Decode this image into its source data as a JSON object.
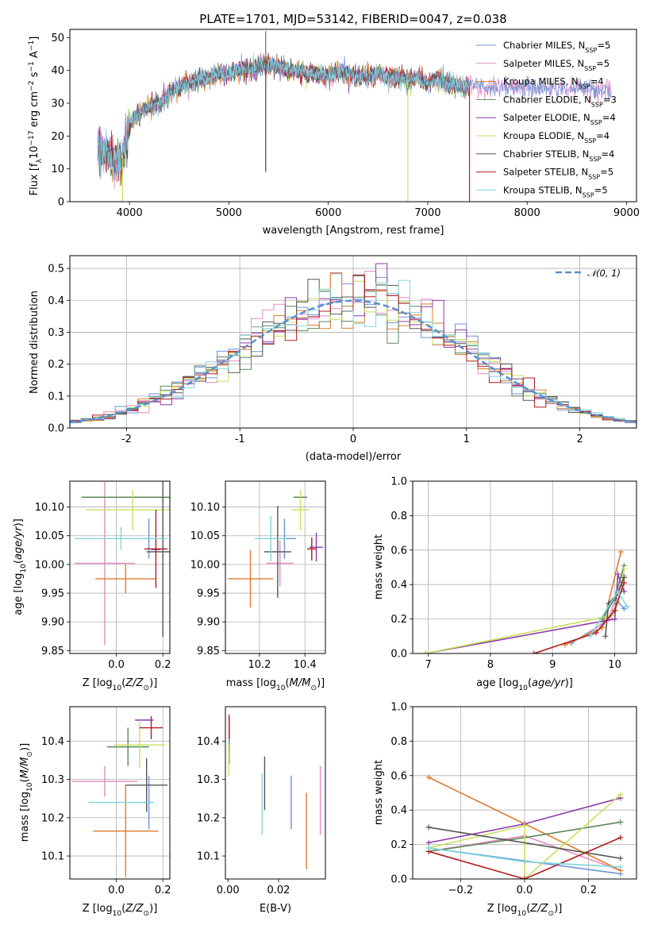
{
  "figure_title": "PLATE=1701, MJD=53142, FIBERID=0047, z=0.038",
  "colors": {
    "Chabrier MILES": "#6b93d6",
    "Salpeter MILES": "#e78ac3",
    "Kroupa MILES": "#e07b2a",
    "Chabrier ELODIE": "#5b8a5b",
    "Salpeter ELODIE": "#8b3cab",
    "Kroupa ELODIE": "#c8e05a",
    "Chabrier STELIB": "#555555",
    "Salpeter STELIB": "#b01c20",
    "Kroupa STELIB": "#7fd6dd"
  },
  "spectrum_legend": [
    {
      "model": "Chabrier MILES",
      "label": "Chabrier MILES, N",
      "sub": "SSP",
      "suffix": "=5"
    },
    {
      "model": "Salpeter MILES",
      "label": "Salpeter MILES, N",
      "sub": "SSP",
      "suffix": "=5"
    },
    {
      "model": "Kroupa MILES",
      "label": "Kroupa MILES, N",
      "sub": "SSP",
      "suffix": "=4"
    },
    {
      "model": "Chabrier ELODIE",
      "label": "Chabrier ELODIE, N",
      "sub": "SSP",
      "suffix": "=3"
    },
    {
      "model": "Salpeter ELODIE",
      "label": "Salpeter ELODIE, N",
      "sub": "SSP",
      "suffix": "=4"
    },
    {
      "model": "Kroupa ELODIE",
      "label": "Kroupa ELODIE, N",
      "sub": "SSP",
      "suffix": "=4"
    },
    {
      "model": "Chabrier STELIB",
      "label": "Chabrier STELIB, N",
      "sub": "SSP",
      "suffix": "=4"
    },
    {
      "model": "Salpeter STELIB",
      "label": "Salpeter STELIB, N",
      "sub": "SSP",
      "suffix": "=5"
    },
    {
      "model": "Kroupa STELIB",
      "label": "Kroupa STELIB, N",
      "sub": "SSP",
      "suffix": "=5"
    }
  ],
  "chart_data": [
    {
      "id": "spectrum",
      "type": "line",
      "xlabel": "wavelength [Angstrom, rest frame]",
      "ylabel": "Flux [f_λ 10^-17 erg cm^-2 s^-1 A^-1]",
      "xlim": [
        3400,
        9100
      ],
      "ylim": [
        0,
        52.5
      ],
      "xticks": [
        4000,
        5000,
        6000,
        7000,
        8000,
        9000
      ],
      "yticks": [
        0,
        10,
        20,
        30,
        40,
        50
      ],
      "grid": false,
      "legend_position": "upper-right",
      "continuum": [
        [
          3680,
          16
        ],
        [
          3760,
          15
        ],
        [
          3850,
          12
        ],
        [
          3920,
          13
        ],
        [
          3960,
          18
        ],
        [
          4000,
          24
        ],
        [
          4100,
          27
        ],
        [
          4200,
          29
        ],
        [
          4300,
          30
        ],
        [
          4400,
          33
        ],
        [
          4500,
          35
        ],
        [
          4600,
          36
        ],
        [
          4700,
          37
        ],
        [
          4800,
          38
        ],
        [
          4900,
          39
        ],
        [
          5000,
          39
        ],
        [
          5100,
          40
        ],
        [
          5200,
          40
        ],
        [
          5300,
          41
        ],
        [
          5400,
          42
        ],
        [
          5500,
          41
        ],
        [
          5600,
          40
        ],
        [
          5700,
          40
        ],
        [
          5800,
          39
        ],
        [
          5900,
          39
        ],
        [
          6000,
          38
        ],
        [
          6100,
          40
        ],
        [
          6200,
          39
        ],
        [
          6300,
          38
        ],
        [
          6400,
          38
        ],
        [
          6500,
          39
        ],
        [
          6600,
          38
        ],
        [
          6700,
          38
        ],
        [
          6800,
          37
        ],
        [
          6900,
          38
        ],
        [
          7000,
          36
        ],
        [
          7100,
          37
        ],
        [
          7200,
          36
        ],
        [
          7300,
          35
        ],
        [
          7400,
          35
        ]
      ],
      "extensions": [
        {
          "model": "Chabrier MILES",
          "x_end": 8850
        },
        {
          "model": "Salpeter MILES",
          "x_end": 8850
        },
        {
          "model": "Kroupa MILES",
          "x_end": 7420
        },
        {
          "model": "Salpeter STELIB",
          "x_end": 7420
        }
      ],
      "dips": [
        {
          "model": "Kroupa ELODIE",
          "x": 3930,
          "y": 0
        },
        {
          "model": "Kroupa ELODIE",
          "x": 6800,
          "y": 0
        },
        {
          "model": "Salpeter STELIB",
          "x": 7420,
          "y": 0
        },
        {
          "model": "Chabrier STELIB",
          "x": 5370,
          "y": 9
        }
      ]
    },
    {
      "id": "residuals",
      "type": "histogram",
      "xlabel": "(data-model)/error",
      "ylabel": "Normed distribution",
      "xlim": [
        -2.5,
        2.5
      ],
      "ylim": [
        0,
        0.54
      ],
      "xticks": [
        -2,
        -1,
        0,
        1,
        2
      ],
      "yticks": [
        0.0,
        0.1,
        0.2,
        0.3,
        0.4,
        0.5
      ],
      "grid": true,
      "bins": 50,
      "reference": {
        "name": "𝒩(0, 1)",
        "color": "#5b8fd0",
        "style": "dashed",
        "mean": 0,
        "sigma": 1
      },
      "legend_position": "upper-right"
    },
    {
      "id": "age_vs_Z",
      "type": "errorbar",
      "xlabel": "Z [log10(Z/Z⊙)]",
      "ylabel": "age [log10(age/yr)]",
      "xlim": [
        -0.2,
        0.23
      ],
      "ylim": [
        9.845,
        10.145
      ],
      "xticks": [
        0.0,
        0.2
      ],
      "yticks": [
        9.85,
        9.9,
        9.95,
        10.0,
        10.05,
        10.1
      ],
      "grid": true,
      "points": [
        {
          "model": "Chabrier MILES",
          "x": 0.14,
          "xerr": 0.02,
          "y": 10.045,
          "yerr": 0.035
        },
        {
          "model": "Salpeter MILES",
          "x": -0.05,
          "xerr": 0.13,
          "y": 10.002,
          "yerr": 0.142
        },
        {
          "model": "Kroupa MILES",
          "x": 0.04,
          "xerr": 0.13,
          "y": 9.975,
          "yerr": 0.025
        },
        {
          "model": "Chabrier ELODIE",
          "x": 0.07,
          "xerr": 0.22,
          "y": 10.117,
          "yerr": 0.0
        },
        {
          "model": "Salpeter ELODIE",
          "x": 0.17,
          "xerr": 0.02,
          "y": 10.026,
          "yerr": 0.0
        },
        {
          "model": "Kroupa ELODIE",
          "x": 0.07,
          "xerr": 0.2,
          "y": 10.095,
          "yerr": 0.035
        },
        {
          "model": "Chabrier STELIB",
          "x": 0.2,
          "xerr": 0.07,
          "y": 10.022,
          "yerr": 0.148
        },
        {
          "model": "Salpeter STELIB",
          "x": 0.17,
          "xerr": 0.05,
          "y": 10.027,
          "yerr": 0.068
        },
        {
          "model": "Kroupa STELIB",
          "x": 0.02,
          "xerr": 0.2,
          "y": 10.045,
          "yerr": 0.02
        }
      ]
    },
    {
      "id": "age_vs_mass",
      "type": "errorbar",
      "xlabel": "mass [log10(M/M⊙)]",
      "ylabel": "",
      "xlim": [
        10.05,
        10.49
      ],
      "ylim": [
        9.845,
        10.145
      ],
      "xticks": [
        10.2,
        10.4
      ],
      "yticks": [
        9.85,
        9.9,
        9.95,
        10.0,
        10.05,
        10.1
      ],
      "grid": true,
      "points": [
        {
          "model": "Chabrier MILES",
          "x": 10.31,
          "xerr": 0.05,
          "y": 10.045,
          "yerr": 0.035
        },
        {
          "model": "Salpeter MILES",
          "x": 10.29,
          "xerr": 0.06,
          "y": 10.002,
          "yerr": 0.04
        },
        {
          "model": "Kroupa MILES",
          "x": 10.16,
          "xerr": 0.1,
          "y": 9.975,
          "yerr": 0.05
        },
        {
          "model": "Chabrier ELODIE",
          "x": 10.38,
          "xerr": 0.03,
          "y": 10.117,
          "yerr": 0.0
        },
        {
          "model": "Salpeter ELODIE",
          "x": 10.45,
          "xerr": 0.03,
          "y": 10.03,
          "yerr": 0.025
        },
        {
          "model": "Kroupa ELODIE",
          "x": 10.38,
          "xerr": 0.04,
          "y": 10.095,
          "yerr": 0.035
        },
        {
          "model": "Chabrier STELIB",
          "x": 10.28,
          "xerr": 0.06,
          "y": 10.022,
          "yerr": 0.08
        },
        {
          "model": "Salpeter STELIB",
          "x": 10.43,
          "xerr": 0.02,
          "y": 10.027,
          "yerr": 0.02
        },
        {
          "model": "Kroupa STELIB",
          "x": 10.25,
          "xerr": 0.07,
          "y": 10.045,
          "yerr": 0.04
        }
      ]
    },
    {
      "id": "mass_weight_vs_age",
      "type": "line",
      "xlabel": "age  [log10(age/yr)]",
      "ylabel": "mass weight",
      "xlim": [
        6.75,
        10.35
      ],
      "ylim": [
        0.0,
        1.0
      ],
      "xticks": [
        7,
        8,
        9,
        10
      ],
      "yticks": [
        0.0,
        0.2,
        0.4,
        0.6,
        0.8,
        1.0
      ],
      "grid": true,
      "series": [
        {
          "model": "Chabrier MILES",
          "points": [
            [
              9.3,
              0.06
            ],
            [
              9.8,
              0.17
            ],
            [
              9.95,
              0.22
            ],
            [
              10.05,
              0.3
            ],
            [
              10.15,
              0.26
            ]
          ]
        },
        {
          "model": "Salpeter MILES",
          "points": [
            [
              9.6,
              0.12
            ],
            [
              9.9,
              0.2
            ],
            [
              10.05,
              0.36
            ],
            [
              10.15,
              0.45
            ]
          ]
        },
        {
          "model": "Kroupa MILES",
          "points": [
            [
              9.2,
              0.05
            ],
            [
              9.8,
              0.15
            ],
            [
              10.1,
              0.59
            ]
          ]
        },
        {
          "model": "Chabrier ELODIE",
          "points": [
            [
              9.8,
              0.2
            ],
            [
              10.0,
              0.32
            ],
            [
              10.15,
              0.51
            ]
          ]
        },
        {
          "model": "Salpeter ELODIE",
          "points": [
            [
              6.95,
              0.0
            ],
            [
              10.0,
              0.2
            ],
            [
              10.05,
              0.46
            ],
            [
              10.15,
              0.36
            ]
          ]
        },
        {
          "model": "Kroupa ELODIE",
          "points": [
            [
              6.95,
              0.0
            ],
            [
              9.95,
              0.22
            ],
            [
              10.05,
              0.3
            ],
            [
              10.15,
              0.49
            ]
          ]
        },
        {
          "model": "Chabrier STELIB",
          "points": [
            [
              9.85,
              0.1
            ],
            [
              9.9,
              0.29
            ],
            [
              10.05,
              0.35
            ],
            [
              10.15,
              0.44
            ]
          ]
        },
        {
          "model": "Salpeter STELIB",
          "points": [
            [
              8.7,
              0.0
            ],
            [
              9.7,
              0.12
            ],
            [
              10.0,
              0.25
            ],
            [
              10.15,
              0.41
            ]
          ]
        },
        {
          "model": "Kroupa STELIB",
          "points": [
            [
              9.6,
              0.1
            ],
            [
              10.05,
              0.36
            ],
            [
              10.2,
              0.27
            ]
          ]
        }
      ]
    },
    {
      "id": "mass_vs_Z",
      "type": "errorbar",
      "xlabel": "Z [log10(Z/Z⊙)]",
      "ylabel": "mass [log10(M/M⊙)]",
      "xlim": [
        -0.2,
        0.23
      ],
      "ylim": [
        10.04,
        10.49
      ],
      "xticks": [
        0.0,
        0.2
      ],
      "yticks": [
        10.1,
        10.2,
        10.3,
        10.4
      ],
      "grid": true,
      "points": [
        {
          "model": "Chabrier MILES",
          "x": 0.14,
          "xerr": 0.02,
          "y": 10.24,
          "yerr": 0.07
        },
        {
          "model": "Salpeter MILES",
          "x": -0.05,
          "xerr": 0.14,
          "y": 10.295,
          "yerr": 0.04
        },
        {
          "model": "Kroupa MILES",
          "x": 0.04,
          "xerr": 0.14,
          "y": 10.165,
          "yerr": 0.12
        },
        {
          "model": "Chabrier ELODIE",
          "x": 0.05,
          "xerr": 0.09,
          "y": 10.385,
          "yerr": 0.05
        },
        {
          "model": "Salpeter ELODIE",
          "x": 0.12,
          "xerr": 0.04,
          "y": 10.455,
          "yerr": 0.0
        },
        {
          "model": "Kroupa ELODIE",
          "x": 0.1,
          "xerr": 0.11,
          "y": 10.39,
          "yerr": 0.06
        },
        {
          "model": "Chabrier STELIB",
          "x": 0.13,
          "xerr": 0.09,
          "y": 10.285,
          "yerr": 0.07
        },
        {
          "model": "Salpeter STELIB",
          "x": 0.15,
          "xerr": 0.05,
          "y": 10.435,
          "yerr": 0.03
        },
        {
          "model": "Kroupa STELIB",
          "x": 0.02,
          "xerr": 0.14,
          "y": 10.24,
          "yerr": 0.0
        }
      ]
    },
    {
      "id": "mass_vs_EBV",
      "type": "errorbar",
      "xlabel": "E(B-V)",
      "ylabel": "",
      "xlim": [
        -0.001,
        0.0385
      ],
      "ylim": [
        10.04,
        10.49
      ],
      "xticks": [
        0.0,
        0.02
      ],
      "yticks": [
        10.1,
        10.2,
        10.3,
        10.4
      ],
      "grid": false,
      "points": [
        {
          "model": "Chabrier MILES",
          "x": 0.025,
          "xerr": 0,
          "y": 10.24,
          "yerr": 0.07
        },
        {
          "model": "Salpeter MILES",
          "x": 0.0365,
          "xerr": 0,
          "y": 10.245,
          "yerr": 0.09
        },
        {
          "model": "Kroupa MILES",
          "x": 0.031,
          "xerr": 0,
          "y": 10.165,
          "yerr": 0.1
        },
        {
          "model": "Chabrier ELODIE",
          "x": 0.0005,
          "xerr": 0,
          "y": 10.39,
          "yerr": 0.05
        },
        {
          "model": "Salpeter ELODIE",
          "x": 0.0005,
          "xerr": 0,
          "y": 10.44,
          "yerr": 0.03
        },
        {
          "model": "Kroupa ELODIE",
          "x": 0.0003,
          "xerr": 0,
          "y": 10.35,
          "yerr": 0.04
        },
        {
          "model": "Chabrier STELIB",
          "x": 0.0145,
          "xerr": 0,
          "y": 10.29,
          "yerr": 0.07
        },
        {
          "model": "Salpeter STELIB",
          "x": 0.0005,
          "xerr": 0,
          "y": 10.435,
          "yerr": 0.03
        },
        {
          "model": "Kroupa STELIB",
          "x": 0.0135,
          "xerr": 0,
          "y": 10.235,
          "yerr": 0.08
        }
      ]
    },
    {
      "id": "mass_weight_vs_Z",
      "type": "line",
      "xlabel": "Z [log10(Z/Z⊙)]",
      "ylabel": "mass weight",
      "xlim": [
        -0.35,
        0.35
      ],
      "ylim": [
        0.0,
        1.0
      ],
      "xticks": [
        -0.2,
        0.0,
        0.2
      ],
      "yticks": [
        0.0,
        0.2,
        0.4,
        0.6,
        0.8,
        1.0
      ],
      "grid": true,
      "series": [
        {
          "model": "Chabrier MILES",
          "points": [
            [
              -0.3,
              0.18
            ],
            [
              0.3,
              0.03
            ]
          ]
        },
        {
          "model": "Salpeter MILES",
          "points": [
            [
              -0.3,
              0.16
            ],
            [
              0.0,
              0.25
            ],
            [
              0.3,
              0.05
            ]
          ]
        },
        {
          "model": "Kroupa MILES",
          "points": [
            [
              -0.3,
              0.59
            ],
            [
              0.0,
              0.32
            ],
            [
              0.3,
              0.05
            ]
          ]
        },
        {
          "model": "Chabrier ELODIE",
          "points": [
            [
              -0.3,
              0.16
            ],
            [
              0.0,
              0.24
            ],
            [
              0.3,
              0.33
            ]
          ]
        },
        {
          "model": "Salpeter ELODIE",
          "points": [
            [
              -0.3,
              0.21
            ],
            [
              0.0,
              0.32
            ],
            [
              0.3,
              0.47
            ]
          ]
        },
        {
          "model": "Kroupa ELODIE",
          "points": [
            [
              -0.3,
              0.18
            ],
            [
              0.0,
              0.31
            ],
            [
              0.0,
              0.0
            ],
            [
              0.3,
              0.49
            ]
          ]
        },
        {
          "model": "Chabrier STELIB",
          "points": [
            [
              -0.3,
              0.3
            ],
            [
              0.3,
              0.12
            ]
          ]
        },
        {
          "model": "Salpeter STELIB",
          "points": [
            [
              -0.3,
              0.16
            ],
            [
              0.0,
              0.0
            ],
            [
              0.3,
              0.24
            ]
          ]
        },
        {
          "model": "Kroupa STELIB",
          "points": [
            [
              -0.3,
              0.18
            ],
            [
              0.0,
              0.1
            ],
            [
              0.3,
              0.07
            ]
          ]
        }
      ]
    }
  ]
}
